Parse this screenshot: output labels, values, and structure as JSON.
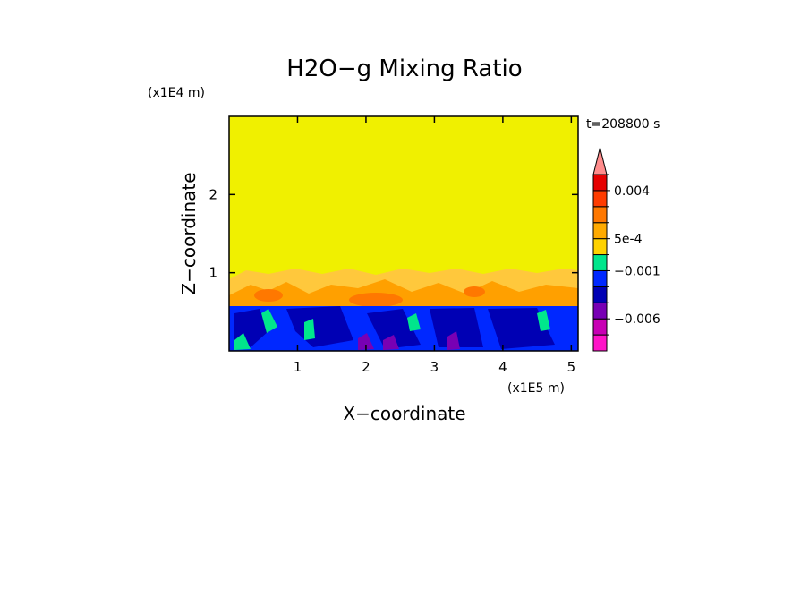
{
  "chart_data": {
    "type": "contour",
    "title": "H2O−g Mixing Ratio",
    "x_label": "X−coordinate",
    "y_label": "Z−coordinate",
    "x_unit": "(x1E5 m)",
    "y_unit": "(x1E4 m)",
    "time_label": "t=208800 s",
    "xlim": [
      0,
      5.1
    ],
    "ylim": [
      0,
      3
    ],
    "xticks": [
      1,
      2,
      3,
      4,
      5
    ],
    "yticks": [
      1,
      2
    ],
    "colorbar": {
      "colors": [
        "#ff14c8",
        "#c800b4",
        "#7800b4",
        "#0000b4",
        "#0028ff",
        "#00e68c",
        "#ffd200",
        "#ffaa00",
        "#ff7800",
        "#ff3c00",
        "#e60000",
        "#ff8c8c"
      ],
      "levels": [
        -0.008,
        {
          "value": -0.006,
          "label": "−0.006"
        },
        -0.004,
        -0.002,
        {
          "value": -0.001,
          "label": "−0.001"
        },
        -0.0005,
        {
          "value": 0.0005,
          "label": "5e-4"
        },
        0.001,
        0.002,
        {
          "value": 0.004,
          "label": "0.004"
        },
        0.006
      ]
    }
  }
}
